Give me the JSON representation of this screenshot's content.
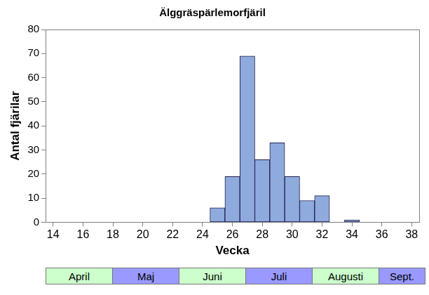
{
  "chart_data": {
    "type": "bar",
    "title": "Älggräspärlemorfjäril",
    "x_label": "Vecka",
    "y_label": "Antal fjärilar",
    "x": [
      25,
      26,
      27,
      28,
      29,
      30,
      31,
      32,
      33,
      34
    ],
    "values": [
      6,
      19,
      69,
      26,
      33,
      19,
      9,
      11,
      0,
      1
    ],
    "color": "#8faadc",
    "xlim": [
      13.5,
      38.5
    ],
    "xticks": [
      14,
      16,
      18,
      20,
      22,
      24,
      26,
      28,
      30,
      32,
      34,
      36,
      38
    ],
    "ylim": [
      0,
      80
    ],
    "yticks": [
      0,
      10,
      20,
      30,
      40,
      50,
      60,
      70,
      80
    ],
    "grid": false,
    "annotations": [
      "April",
      "Maj",
      "Juni",
      "Juli",
      "Augusti",
      "Sept."
    ]
  }
}
